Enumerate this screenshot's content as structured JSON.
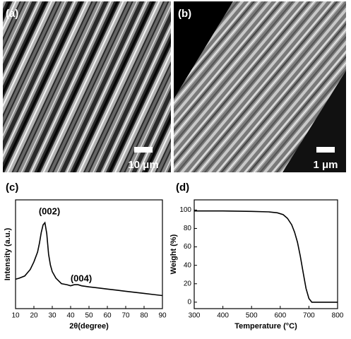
{
  "images": [
    {
      "panel_label": "(a)",
      "scale_bar": "10 μm"
    },
    {
      "panel_label": "(b)",
      "scale_bar": "1 μm"
    }
  ],
  "chart_data": [
    {
      "type": "line",
      "panel_label": "(c)",
      "xlabel": "2θ(degree)",
      "ylabel": "Intensity (a.u.)",
      "annotations": [
        "(002)",
        "(004)"
      ],
      "color": "#000000",
      "x": [
        10,
        12,
        15,
        18,
        20,
        22,
        23,
        24,
        25,
        26,
        27,
        28,
        29,
        30,
        32,
        35,
        38,
        40,
        42,
        44,
        46,
        50,
        55,
        60,
        65,
        70,
        75,
        80,
        85,
        90
      ],
      "values": [
        27,
        28,
        30,
        36,
        43,
        52,
        60,
        70,
        77,
        79,
        69,
        50,
        40,
        34,
        28,
        23,
        22,
        21,
        22,
        22,
        21,
        20,
        19,
        18,
        17,
        16,
        15,
        14,
        13,
        12
      ],
      "xlim": [
        10,
        90
      ],
      "ylim": [
        0,
        100
      ],
      "xticks": [
        10,
        20,
        30,
        40,
        50,
        60,
        70,
        80,
        90
      ]
    },
    {
      "type": "line",
      "panel_label": "(d)",
      "xlabel": "Temperature (°C)",
      "ylabel": "Weight (%)",
      "color": "#000000",
      "x": [
        300,
        400,
        500,
        560,
        590,
        610,
        625,
        640,
        650,
        660,
        670,
        680,
        690,
        700,
        710,
        720,
        800
      ],
      "values": [
        99,
        99,
        98.5,
        98,
        97,
        95,
        91,
        84,
        76,
        65,
        50,
        32,
        15,
        4,
        0,
        0,
        0
      ],
      "xlim": [
        300,
        800
      ],
      "ylim": [
        -7,
        111
      ],
      "xticks": [
        300,
        400,
        500,
        600,
        700,
        800
      ],
      "yticks": [
        0,
        20,
        40,
        60,
        80,
        100
      ]
    }
  ]
}
